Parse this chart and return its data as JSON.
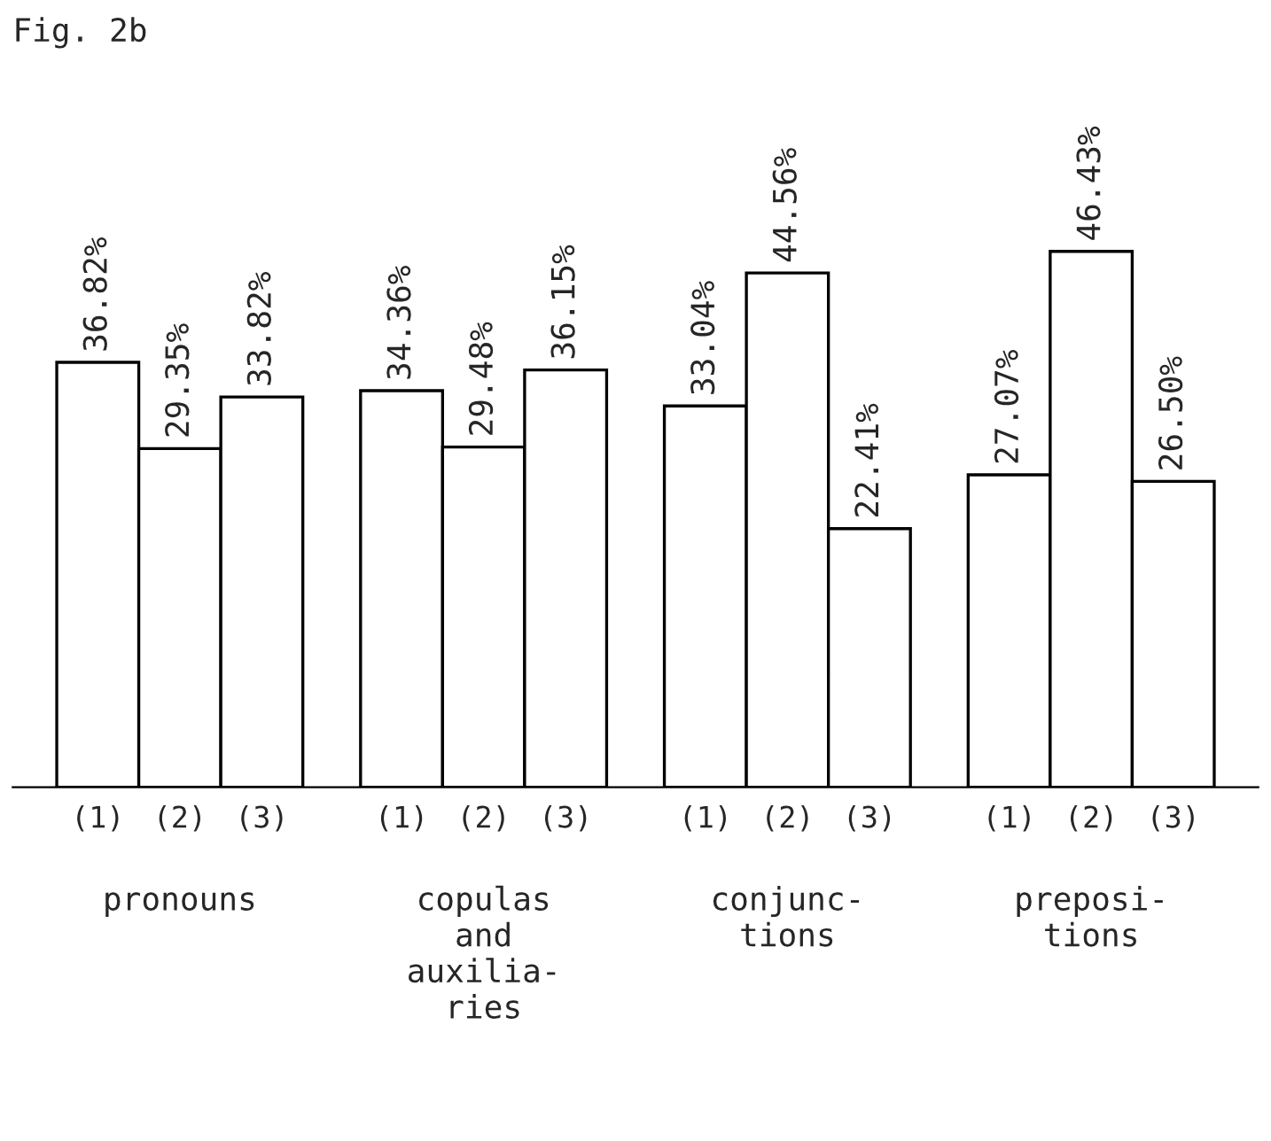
{
  "chart_data": {
    "type": "bar",
    "title": "Fig. 2b",
    "categories": [
      "pronouns",
      "copulas\nand\nauxilia-\nries",
      "conjunc-\ntions",
      "preposi-\ntions"
    ],
    "series": [
      {
        "name": "(1)",
        "color": "#ffffff",
        "values": [
          36.82,
          34.36,
          33.04,
          27.07
        ],
        "value_labels": [
          "36.82%",
          "34.36%",
          "33.04%",
          "27.07%"
        ]
      },
      {
        "name": "(2)",
        "color": "#ffffff",
        "values": [
          29.35,
          29.48,
          44.56,
          46.43
        ],
        "value_labels": [
          "29.35%",
          "29.48%",
          "44.56%",
          "46.43%"
        ]
      },
      {
        "name": "(3)",
        "color": "#ffffff",
        "values": [
          33.82,
          36.15,
          22.41,
          26.5
        ],
        "value_labels": [
          "33.82%",
          "36.15%",
          "22.41%",
          "26.50%"
        ]
      }
    ],
    "tick_labels": "x"
  }
}
